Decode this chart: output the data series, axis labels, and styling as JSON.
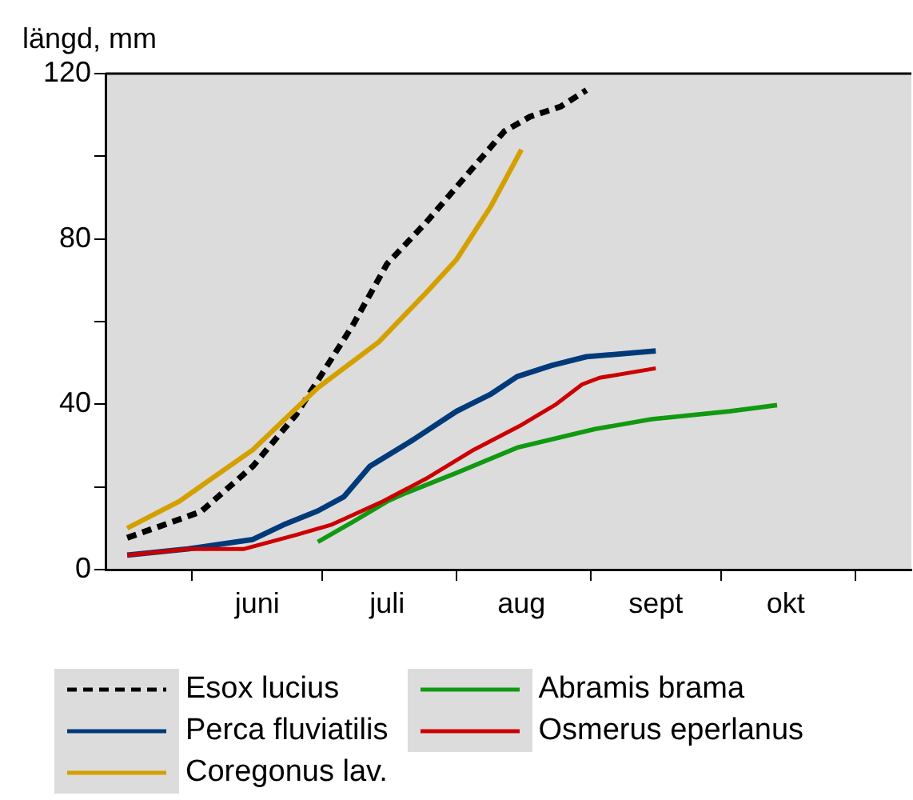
{
  "chart_data": {
    "type": "line",
    "ylabel": "längd, mm",
    "xlim": [
      "--05-12",
      "--11-14"
    ],
    "ylim": [
      0,
      120
    ],
    "xticks": [
      {
        "value": "--06-01",
        "label": null
      },
      {
        "value": "--06-16",
        "label": "juni"
      },
      {
        "value": "--07-01",
        "label": null
      },
      {
        "value": "--07-16",
        "label": "juli"
      },
      {
        "value": "--08-01",
        "label": null
      },
      {
        "value": "--08-16",
        "label": "aug"
      },
      {
        "value": "--09-01",
        "label": null
      },
      {
        "value": "--09-16",
        "label": "sept"
      },
      {
        "value": "--10-01",
        "label": null
      },
      {
        "value": "--10-16",
        "label": "okt"
      },
      {
        "value": "--11-01",
        "label": null
      }
    ],
    "yticks": [
      0,
      {
        "value": 20,
        "label": null
      },
      40,
      {
        "value": 60,
        "label": null
      },
      80,
      {
        "value": 100,
        "label": null
      },
      120
    ],
    "grid": false,
    "legend": "bottom",
    "marker": "none",
    "series": [
      {
        "name": "Esox lucius",
        "color": "#000000",
        "line_style": "dashed",
        "x": [
          "--05-17",
          "--06-03",
          "--06-15",
          "--06-25",
          "--07-08",
          "--07-16",
          "--07-25",
          "--08-03",
          "--08-12",
          "--08-18",
          "--08-25",
          "--08-31"
        ],
        "values": [
          7.7,
          14,
          25,
          37.5,
          59,
          74,
          84,
          95,
          106,
          109.6,
          112,
          116
        ]
      },
      {
        "name": "Perca fluviatilis",
        "color": "#003a7a",
        "line_style": "solid",
        "x": [
          "--05-17",
          "--05-31",
          "--06-15",
          "--06-22",
          "--06-30",
          "--07-06",
          "--07-12",
          "--07-22",
          "--08-01",
          "--08-09",
          "--08-15",
          "--08-23",
          "--08-31",
          "--09-16"
        ],
        "values": [
          3.5,
          5,
          7.3,
          10.8,
          14.2,
          17.6,
          25,
          31.4,
          38.3,
          42.5,
          46.7,
          49.4,
          51.5,
          52.9
        ]
      },
      {
        "name": "Coregonus lav.",
        "color": "#d4a000",
        "line_style": "solid",
        "x": [
          "--05-17",
          "--05-29",
          "--06-15",
          "--06-30",
          "--07-14",
          "--07-25",
          "--08-01",
          "--08-09",
          "--08-16"
        ],
        "values": [
          10,
          16.5,
          29,
          44,
          55,
          67,
          75,
          88,
          101.6
        ]
      },
      {
        "name": "Abramis brama",
        "color": "#119911",
        "line_style": "solid",
        "x": [
          "--06-30",
          "--07-08",
          "--07-16",
          "--07-20",
          "--08-01",
          "--08-15",
          "--09-02",
          "--09-15",
          "--10-03",
          "--10-14"
        ],
        "values": [
          6.7,
          11.5,
          16.5,
          18.4,
          23.4,
          29.5,
          34,
          36.4,
          38.3,
          39.8
        ]
      },
      {
        "name": "Osmerus eperlanus",
        "color": "#cc0000",
        "line_style": "solid",
        "x": [
          "--05-17",
          "--05-31",
          "--06-13",
          "--06-25",
          "--07-03",
          "--07-15",
          "--07-25",
          "--08-05",
          "--08-16",
          "--08-24",
          "--08-30",
          "--09-03",
          "--09-16"
        ],
        "values": [
          3.5,
          5,
          5,
          8.4,
          10.8,
          16.5,
          22,
          29,
          35,
          40,
          44.8,
          46.4,
          48.7
        ]
      }
    ]
  }
}
